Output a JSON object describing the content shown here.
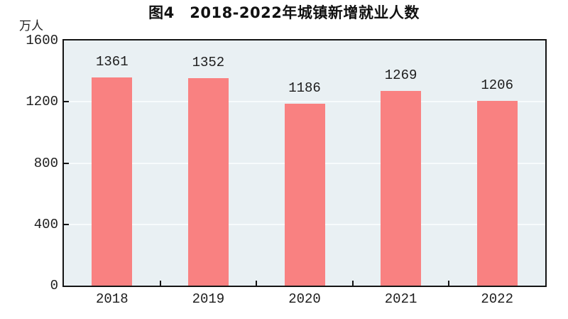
{
  "chart_data": {
    "type": "bar",
    "title": "图4　2018-2022年城镇新增就业人数",
    "ylabel": "万人",
    "xlabel": "",
    "categories": [
      "2018",
      "2019",
      "2020",
      "2021",
      "2022"
    ],
    "values": [
      1361,
      1352,
      1186,
      1269,
      1206
    ],
    "value_labels": [
      "1361",
      "1352",
      "1186",
      "1269",
      "1206"
    ],
    "ylim": [
      0,
      1600
    ],
    "yticks": [
      0,
      400,
      800,
      1200,
      1600
    ],
    "grid": "horizontal, on ticks 400/800/1200, light lines behind bars",
    "legend_position": "none",
    "colors": {
      "bar": "#f98181",
      "plot_background": "#e9f0f3",
      "gridline": "#f7fbfc",
      "axis_frame": "#141414",
      "text": "#1c1c1c"
    }
  }
}
